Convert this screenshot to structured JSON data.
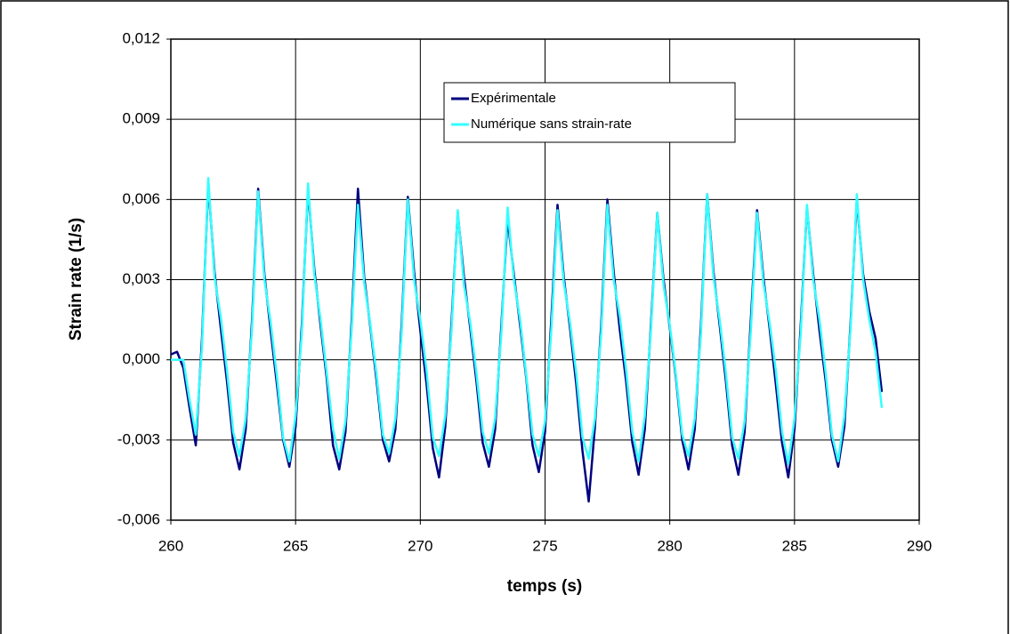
{
  "chart_data": {
    "type": "line",
    "xlabel": "temps (s)",
    "ylabel": "Strain rate (1/s)",
    "xlim": [
      260,
      290
    ],
    "xticks": [
      260,
      265,
      270,
      275,
      280,
      285,
      290
    ],
    "ylim": [
      -0.006,
      0.012
    ],
    "yticks": [
      {
        "value": -0.006,
        "label": "-0,006"
      },
      {
        "value": -0.003,
        "label": "-0,003"
      },
      {
        "value": 0,
        "label": "0,000"
      },
      {
        "value": 0.003,
        "label": "0,003"
      },
      {
        "value": 0.006,
        "label": "0,006"
      },
      {
        "value": 0.009,
        "label": "0,009"
      },
      {
        "value": 0.012,
        "label": "0,012"
      }
    ],
    "grid": true,
    "legend": "top-center",
    "x": [
      260,
      260.25,
      260.5,
      260.75,
      261,
      261.25,
      261.5,
      261.75,
      262,
      262.25,
      262.5,
      262.75,
      263,
      263.25,
      263.5,
      263.75,
      264,
      264.25,
      264.5,
      264.75,
      265,
      265.25,
      265.5,
      265.75,
      266,
      266.25,
      266.5,
      266.75,
      267,
      267.25,
      267.5,
      267.75,
      268,
      268.25,
      268.5,
      268.75,
      269,
      269.25,
      269.5,
      269.75,
      270,
      270.25,
      270.5,
      270.75,
      271,
      271.25,
      271.5,
      271.75,
      272,
      272.25,
      272.5,
      272.75,
      273,
      273.25,
      273.5,
      273.75,
      274,
      274.25,
      274.5,
      274.75,
      275,
      275.25,
      275.5,
      275.75,
      276,
      276.25,
      276.5,
      276.75,
      277,
      277.25,
      277.5,
      277.75,
      278,
      278.25,
      278.5,
      278.75,
      279,
      279.25,
      279.5,
      279.75,
      280,
      280.25,
      280.5,
      280.75,
      281,
      281.25,
      281.5,
      281.75,
      282,
      282.25,
      282.5,
      282.75,
      283,
      283.25,
      283.5,
      283.75,
      284,
      284.25,
      284.5,
      284.75,
      285,
      285.25,
      285.5,
      285.75,
      286,
      286.25,
      286.5,
      286.75,
      287,
      287.25,
      287.5,
      287.75,
      288,
      288.25,
      288.5
    ],
    "series": [
      {
        "name": "Expérimentale",
        "color": "#000080",
        "values": [
          0.0002,
          0.0003,
          -0.0003,
          -0.0018,
          -0.0032,
          0.0008,
          0.0066,
          0.0033,
          0.0012,
          -0.0008,
          -0.0031,
          -0.0041,
          -0.0026,
          0.0014,
          0.0064,
          0.0032,
          0.0011,
          -0.0009,
          -0.003,
          -0.004,
          -0.0025,
          0.0013,
          0.0064,
          0.0034,
          0.0013,
          -0.0007,
          -0.0032,
          -0.0041,
          -0.0027,
          0.0015,
          0.0064,
          0.0031,
          0.0012,
          -0.0008,
          -0.003,
          -0.0038,
          -0.0026,
          0.0013,
          0.0061,
          0.0033,
          0.0011,
          -0.0009,
          -0.0033,
          -0.0044,
          -0.0025,
          0.0014,
          0.0055,
          0.0031,
          0.0012,
          -0.0008,
          -0.0031,
          -0.004,
          -0.0026,
          0.0013,
          0.0053,
          0.0032,
          0.0013,
          -0.0007,
          -0.0032,
          -0.0042,
          -0.0027,
          0.0015,
          0.0058,
          0.0031,
          0.0012,
          -0.0009,
          -0.0034,
          -0.0053,
          -0.0025,
          0.0013,
          0.006,
          0.0033,
          0.0011,
          -0.0008,
          -0.0031,
          -0.0043,
          -0.0026,
          0.0014,
          0.0055,
          0.003,
          0.0012,
          -0.0007,
          -0.003,
          -0.0041,
          -0.0026,
          0.0013,
          0.0062,
          0.0033,
          0.0013,
          -0.0008,
          -0.0032,
          -0.0043,
          -0.0027,
          0.0015,
          0.0056,
          0.0031,
          0.0012,
          -0.0009,
          -0.0031,
          -0.0044,
          -0.0026,
          0.0013,
          0.0057,
          0.0032,
          0.0011,
          -0.0008,
          -0.003,
          -0.004,
          -0.0025,
          0.0014,
          0.006,
          0.0032,
          0.0018,
          0.0008,
          -0.0012
        ]
      },
      {
        "name": "Numérique sans strain-rate",
        "color": "#33ffff",
        "values": [
          0,
          0,
          0,
          -0.0015,
          -0.0028,
          0.0005,
          0.0068,
          0.0031,
          0.0016,
          -0.0004,
          -0.0027,
          -0.0036,
          -0.0022,
          0.0011,
          0.0063,
          0.003,
          0.0014,
          -0.0006,
          -0.0029,
          -0.0038,
          -0.0021,
          0.001,
          0.0066,
          0.0032,
          0.0015,
          -0.0005,
          -0.0026,
          -0.0037,
          -0.0023,
          0.0012,
          0.0058,
          0.0029,
          0.0013,
          -0.0006,
          -0.0028,
          -0.0035,
          -0.0022,
          0.001,
          0.006,
          0.003,
          0.0015,
          -0.0004,
          -0.0029,
          -0.0036,
          -0.0021,
          0.0011,
          0.0056,
          0.0028,
          0.0014,
          -0.0005,
          -0.0027,
          -0.0035,
          -0.0022,
          0.001,
          0.0057,
          0.003,
          0.0015,
          -0.0006,
          -0.0028,
          -0.0036,
          -0.0023,
          0.0011,
          0.0056,
          0.0029,
          0.0014,
          -0.0005,
          -0.0029,
          -0.0037,
          -0.0022,
          0.001,
          0.0058,
          0.003,
          0.0016,
          -0.0004,
          -0.0027,
          -0.0038,
          -0.0021,
          0.0012,
          0.0055,
          0.0028,
          0.0013,
          -0.0006,
          -0.0028,
          -0.0036,
          -0.0022,
          0.001,
          0.0062,
          0.0031,
          0.0015,
          -0.0005,
          -0.0029,
          -0.0037,
          -0.0023,
          0.0011,
          0.0055,
          0.0029,
          0.0014,
          -0.0004,
          -0.0027,
          -0.0039,
          -0.0022,
          0.001,
          0.0058,
          0.003,
          0.0015,
          -0.0005,
          -0.0028,
          -0.0038,
          -0.0021,
          0.0012,
          0.0062,
          0.003,
          0.0015,
          0.0003,
          -0.0018
        ]
      }
    ]
  }
}
